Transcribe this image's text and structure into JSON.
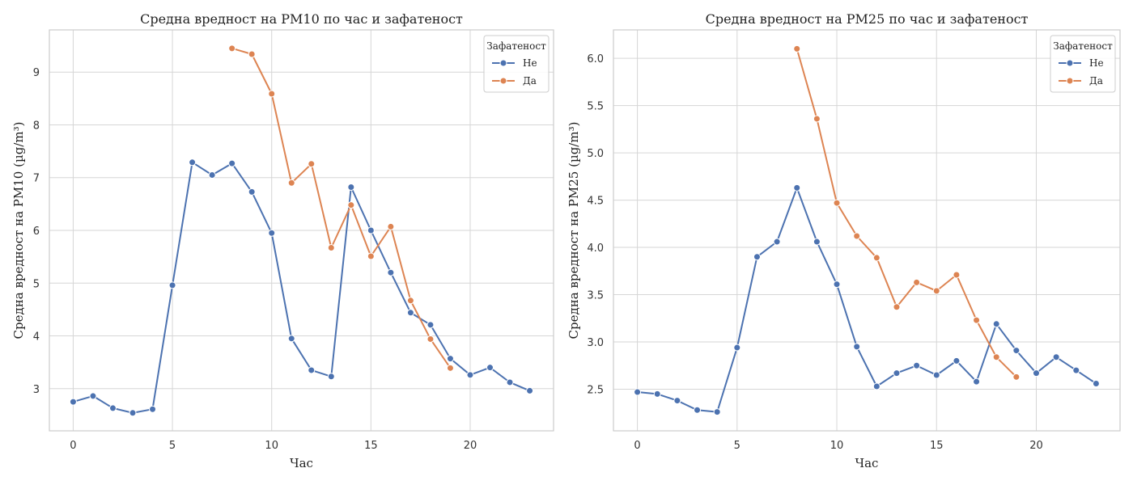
{
  "chart_data": [
    {
      "type": "line",
      "title": "Средна вредност на PM10 по час и зафатеност",
      "xlabel": "Час",
      "ylabel": "Средна вредност на PM10 (µg/m³)",
      "xlim": [
        -1.2,
        24.2
      ],
      "ylim": [
        2.2,
        9.8
      ],
      "xticks": [
        0,
        5,
        10,
        15,
        20
      ],
      "xtick_labels": [
        "0",
        "5",
        "10",
        "15",
        "20"
      ],
      "yticks": [
        3,
        4,
        5,
        6,
        7,
        8,
        9
      ],
      "ytick_labels": [
        "3",
        "4",
        "5",
        "6",
        "7",
        "8",
        "9"
      ],
      "grid": true,
      "legend": {
        "title": "Зафатеност",
        "position": "top-right"
      },
      "series": [
        {
          "name": "Не",
          "color": "#4c72b0",
          "x": [
            0,
            1,
            2,
            3,
            4,
            5,
            6,
            7,
            8,
            9,
            10,
            11,
            12,
            13,
            14,
            15,
            16,
            17,
            18,
            19,
            20,
            21,
            22,
            23
          ],
          "y": [
            2.75,
            2.86,
            2.63,
            2.54,
            2.61,
            4.96,
            7.29,
            7.05,
            7.27,
            6.73,
            5.95,
            3.95,
            3.35,
            3.23,
            6.82,
            6.0,
            5.2,
            4.44,
            4.21,
            3.57,
            3.26,
            3.4,
            3.12,
            2.96
          ]
        },
        {
          "name": "Да",
          "color": "#dd8452",
          "x": [
            8,
            9,
            10,
            11,
            12,
            13,
            14,
            15,
            16,
            17,
            18,
            19
          ],
          "y": [
            9.45,
            9.34,
            8.59,
            6.9,
            7.26,
            5.67,
            6.48,
            5.51,
            6.07,
            4.67,
            3.94,
            3.39
          ]
        }
      ]
    },
    {
      "type": "line",
      "title": "Средна вредност на PM25 по час и зафатеност",
      "xlabel": "Час",
      "ylabel": "Средна вредност на PM25 (µg/m³)",
      "xlim": [
        -1.2,
        24.2
      ],
      "ylim": [
        2.06,
        6.3
      ],
      "xticks": [
        0,
        5,
        10,
        15,
        20
      ],
      "xtick_labels": [
        "0",
        "5",
        "10",
        "15",
        "20"
      ],
      "yticks": [
        2.5,
        3.0,
        3.5,
        4.0,
        4.5,
        5.0,
        5.5,
        6.0
      ],
      "ytick_labels": [
        "2.5",
        "3.0",
        "3.5",
        "4.0",
        "4.5",
        "5.0",
        "5.5",
        "6.0"
      ],
      "grid": true,
      "legend": {
        "title": "Зафатеност",
        "position": "top-right"
      },
      "series": [
        {
          "name": "Не",
          "color": "#4c72b0",
          "x": [
            0,
            1,
            2,
            3,
            4,
            5,
            6,
            7,
            8,
            9,
            10,
            11,
            12,
            13,
            14,
            15,
            16,
            17,
            18,
            19,
            20,
            21,
            22,
            23
          ],
          "y": [
            2.47,
            2.45,
            2.38,
            2.28,
            2.26,
            2.94,
            3.9,
            4.06,
            4.63,
            4.06,
            3.61,
            2.95,
            2.53,
            2.67,
            2.75,
            2.65,
            2.8,
            2.58,
            3.19,
            2.91,
            2.67,
            2.84,
            2.7,
            2.56
          ]
        },
        {
          "name": "Да",
          "color": "#dd8452",
          "x": [
            8,
            9,
            10,
            11,
            12,
            13,
            14,
            15,
            16,
            17,
            18,
            19
          ],
          "y": [
            6.1,
            5.36,
            4.47,
            4.12,
            3.89,
            3.37,
            3.63,
            3.54,
            3.71,
            3.23,
            2.84,
            2.63
          ]
        }
      ]
    }
  ]
}
